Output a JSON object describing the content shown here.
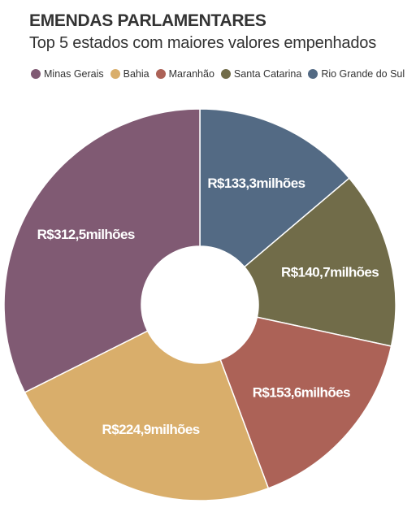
{
  "header": {
    "title": "EMENDAS PARLAMENTARES",
    "subtitle": "Top 5 estados com maiores valores empenhados"
  },
  "chart_data": {
    "type": "pie",
    "style": "donut",
    "categories": [
      "Minas Gerais",
      "Bahia",
      "Maranhão",
      "Santa Catarina",
      "Rio Grande do Sul"
    ],
    "values": [
      312.5,
      224.9,
      153.6,
      140.7,
      133.3
    ],
    "labels": [
      "R$312,5milhões",
      "R$224,9milhões",
      "R$153,6milhões",
      "R$140,7milhões",
      "R$133,3milhões"
    ],
    "colors": [
      "#805a73",
      "#d9ae6b",
      "#ac6257",
      "#716c49",
      "#536a84"
    ],
    "legend_position": "top"
  }
}
